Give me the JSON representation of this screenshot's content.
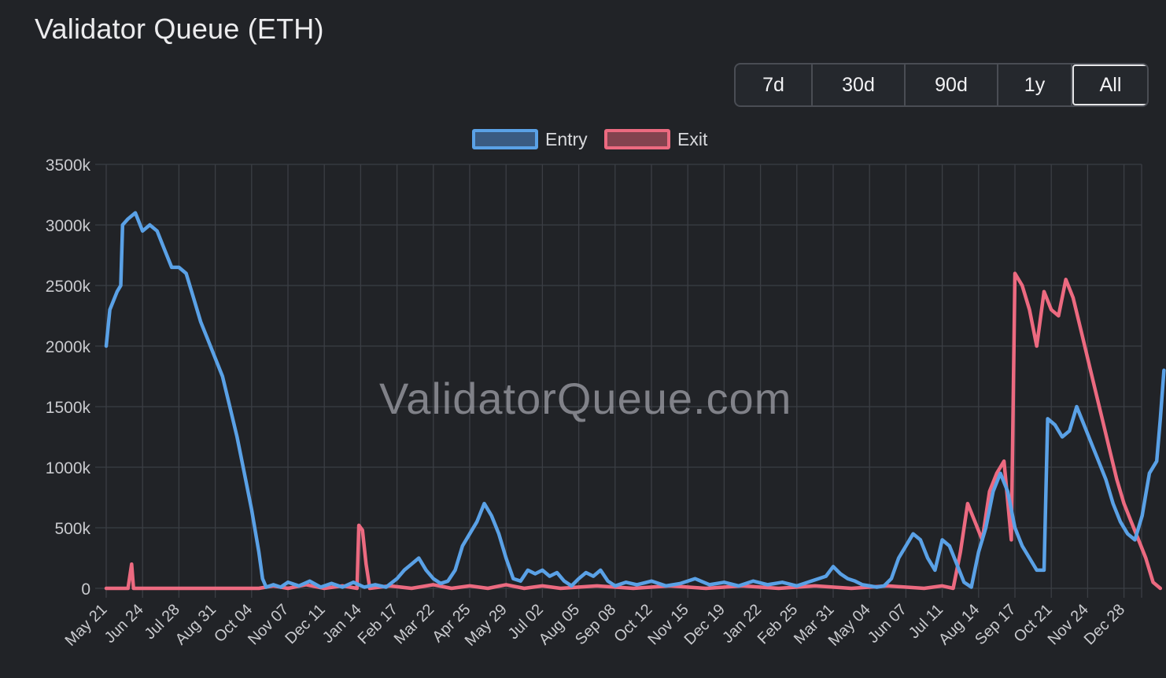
{
  "page": {
    "title": "Validator Queue (ETH)",
    "watermark": "ValidatorQueue.com"
  },
  "range_selector": {
    "options": [
      "7d",
      "30d",
      "90d",
      "1y",
      "All"
    ],
    "selected": "All"
  },
  "colors": {
    "background": "#212327",
    "grid": "#3b3e44",
    "entry": "#5aa1e6",
    "exit": "#ec6a80",
    "axis_text": "#c9cace"
  },
  "chart_data": {
    "type": "line",
    "title": "Validator Queue (ETH)",
    "xlabel": "",
    "ylabel": "",
    "ylim": [
      0,
      3500
    ],
    "y_unit": "k",
    "y_ticks": [
      "0",
      "500k",
      "1000k",
      "1500k",
      "2000k",
      "2500k",
      "3000k",
      "3500k"
    ],
    "x_ticks": [
      "May 21",
      "Jun 24",
      "Jul 28",
      "Aug 31",
      "Oct 04",
      "Nov 07",
      "Dec 11",
      "Jan 14",
      "Feb 17",
      "Mar 22",
      "Apr 25",
      "May 29",
      "Jul 02",
      "Aug 05",
      "Sep 08",
      "Oct 12",
      "Nov 15",
      "Dec 19",
      "Jan 22",
      "Feb 25",
      "Mar 31",
      "May 04",
      "Jun 07",
      "Jul 11",
      "Aug 14",
      "Sep 17",
      "Oct 21",
      "Nov 24",
      "Dec 28"
    ],
    "x_range": [
      0,
      28.5
    ],
    "grid": true,
    "legend_position": "top-center",
    "series": [
      {
        "name": "Entry",
        "color": "#5aa1e6",
        "points": [
          [
            0,
            2000
          ],
          [
            0.1,
            2300
          ],
          [
            0.3,
            2450
          ],
          [
            0.4,
            2500
          ],
          [
            0.45,
            3000
          ],
          [
            0.6,
            3050
          ],
          [
            0.8,
            3100
          ],
          [
            1.0,
            2950
          ],
          [
            1.2,
            3000
          ],
          [
            1.4,
            2950
          ],
          [
            1.6,
            2800
          ],
          [
            1.8,
            2650
          ],
          [
            2.0,
            2650
          ],
          [
            2.2,
            2600
          ],
          [
            2.4,
            2400
          ],
          [
            2.6,
            2200
          ],
          [
            2.8,
            2050
          ],
          [
            3.0,
            1900
          ],
          [
            3.2,
            1750
          ],
          [
            3.4,
            1500
          ],
          [
            3.6,
            1250
          ],
          [
            3.8,
            950
          ],
          [
            4.0,
            650
          ],
          [
            4.2,
            300
          ],
          [
            4.3,
            80
          ],
          [
            4.4,
            10
          ],
          [
            4.6,
            30
          ],
          [
            4.8,
            10
          ],
          [
            5.0,
            50
          ],
          [
            5.3,
            20
          ],
          [
            5.6,
            60
          ],
          [
            5.9,
            10
          ],
          [
            6.2,
            40
          ],
          [
            6.5,
            10
          ],
          [
            6.8,
            50
          ],
          [
            7.1,
            10
          ],
          [
            7.4,
            30
          ],
          [
            7.7,
            10
          ],
          [
            8.0,
            80
          ],
          [
            8.2,
            150
          ],
          [
            8.4,
            200
          ],
          [
            8.6,
            250
          ],
          [
            8.8,
            150
          ],
          [
            9.0,
            80
          ],
          [
            9.2,
            40
          ],
          [
            9.4,
            60
          ],
          [
            9.6,
            150
          ],
          [
            9.8,
            350
          ],
          [
            10.0,
            450
          ],
          [
            10.2,
            550
          ],
          [
            10.4,
            700
          ],
          [
            10.6,
            600
          ],
          [
            10.8,
            450
          ],
          [
            11.0,
            250
          ],
          [
            11.2,
            80
          ],
          [
            11.4,
            60
          ],
          [
            11.6,
            150
          ],
          [
            11.8,
            120
          ],
          [
            12.0,
            150
          ],
          [
            12.2,
            100
          ],
          [
            12.4,
            130
          ],
          [
            12.6,
            60
          ],
          [
            12.8,
            20
          ],
          [
            13.0,
            80
          ],
          [
            13.2,
            130
          ],
          [
            13.4,
            100
          ],
          [
            13.6,
            150
          ],
          [
            13.8,
            60
          ],
          [
            14.0,
            20
          ],
          [
            14.3,
            50
          ],
          [
            14.6,
            30
          ],
          [
            15.0,
            60
          ],
          [
            15.4,
            20
          ],
          [
            15.8,
            40
          ],
          [
            16.2,
            80
          ],
          [
            16.6,
            30
          ],
          [
            17.0,
            50
          ],
          [
            17.4,
            20
          ],
          [
            17.8,
            60
          ],
          [
            18.2,
            30
          ],
          [
            18.6,
            50
          ],
          [
            19.0,
            20
          ],
          [
            19.4,
            60
          ],
          [
            19.8,
            100
          ],
          [
            20.0,
            180
          ],
          [
            20.2,
            120
          ],
          [
            20.4,
            80
          ],
          [
            20.6,
            60
          ],
          [
            20.8,
            30
          ],
          [
            21.0,
            20
          ],
          [
            21.2,
            10
          ],
          [
            21.4,
            20
          ],
          [
            21.6,
            80
          ],
          [
            21.8,
            250
          ],
          [
            22.0,
            350
          ],
          [
            22.2,
            450
          ],
          [
            22.4,
            400
          ],
          [
            22.6,
            250
          ],
          [
            22.8,
            150
          ],
          [
            23.0,
            400
          ],
          [
            23.2,
            350
          ],
          [
            23.4,
            200
          ],
          [
            23.6,
            50
          ],
          [
            23.8,
            10
          ],
          [
            24.0,
            300
          ],
          [
            24.2,
            500
          ],
          [
            24.4,
            800
          ],
          [
            24.6,
            950
          ],
          [
            24.8,
            800
          ],
          [
            25.0,
            500
          ],
          [
            25.2,
            350
          ],
          [
            25.4,
            250
          ],
          [
            25.6,
            150
          ],
          [
            25.8,
            150
          ],
          [
            25.9,
            1400
          ],
          [
            26.1,
            1350
          ],
          [
            26.3,
            1250
          ],
          [
            26.5,
            1300
          ],
          [
            26.7,
            1500
          ],
          [
            26.9,
            1350
          ],
          [
            27.1,
            1200
          ],
          [
            27.3,
            1050
          ],
          [
            27.5,
            900
          ],
          [
            27.7,
            700
          ],
          [
            27.9,
            550
          ],
          [
            28.1,
            450
          ],
          [
            28.3,
            400
          ],
          [
            28.5,
            600
          ],
          [
            28.7,
            950
          ],
          [
            28.9,
            1050
          ],
          [
            29.0,
            1400
          ],
          [
            29.1,
            1800
          ]
        ]
      },
      {
        "name": "Exit",
        "color": "#ec6a80",
        "points": [
          [
            0,
            0
          ],
          [
            0.6,
            0
          ],
          [
            0.7,
            200
          ],
          [
            0.75,
            0
          ],
          [
            1.5,
            0
          ],
          [
            3.0,
            0
          ],
          [
            4.2,
            0
          ],
          [
            4.6,
            20
          ],
          [
            5.0,
            0
          ],
          [
            5.5,
            30
          ],
          [
            6.0,
            0
          ],
          [
            6.5,
            20
          ],
          [
            6.9,
            0
          ],
          [
            6.95,
            520
          ],
          [
            7.05,
            480
          ],
          [
            7.15,
            200
          ],
          [
            7.25,
            0
          ],
          [
            7.8,
            20
          ],
          [
            8.4,
            0
          ],
          [
            9.0,
            30
          ],
          [
            9.5,
            0
          ],
          [
            10.0,
            20
          ],
          [
            10.5,
            0
          ],
          [
            11.0,
            30
          ],
          [
            11.5,
            0
          ],
          [
            12.0,
            20
          ],
          [
            12.5,
            0
          ],
          [
            13.5,
            20
          ],
          [
            14.5,
            0
          ],
          [
            15.5,
            20
          ],
          [
            16.5,
            0
          ],
          [
            17.5,
            20
          ],
          [
            18.5,
            0
          ],
          [
            19.5,
            20
          ],
          [
            20.5,
            0
          ],
          [
            21.5,
            20
          ],
          [
            22.5,
            0
          ],
          [
            23.0,
            20
          ],
          [
            23.3,
            0
          ],
          [
            23.5,
            300
          ],
          [
            23.7,
            700
          ],
          [
            23.9,
            550
          ],
          [
            24.1,
            400
          ],
          [
            24.3,
            800
          ],
          [
            24.5,
            950
          ],
          [
            24.7,
            1050
          ],
          [
            24.9,
            400
          ],
          [
            25.0,
            2600
          ],
          [
            25.2,
            2500
          ],
          [
            25.4,
            2300
          ],
          [
            25.6,
            2000
          ],
          [
            25.8,
            2450
          ],
          [
            26.0,
            2300
          ],
          [
            26.2,
            2250
          ],
          [
            26.4,
            2550
          ],
          [
            26.6,
            2400
          ],
          [
            26.8,
            2150
          ],
          [
            27.0,
            1900
          ],
          [
            27.2,
            1650
          ],
          [
            27.4,
            1400
          ],
          [
            27.6,
            1150
          ],
          [
            27.8,
            900
          ],
          [
            28.0,
            700
          ],
          [
            28.2,
            550
          ],
          [
            28.4,
            400
          ],
          [
            28.6,
            250
          ],
          [
            28.8,
            50
          ],
          [
            29.0,
            0
          ]
        ]
      }
    ]
  }
}
